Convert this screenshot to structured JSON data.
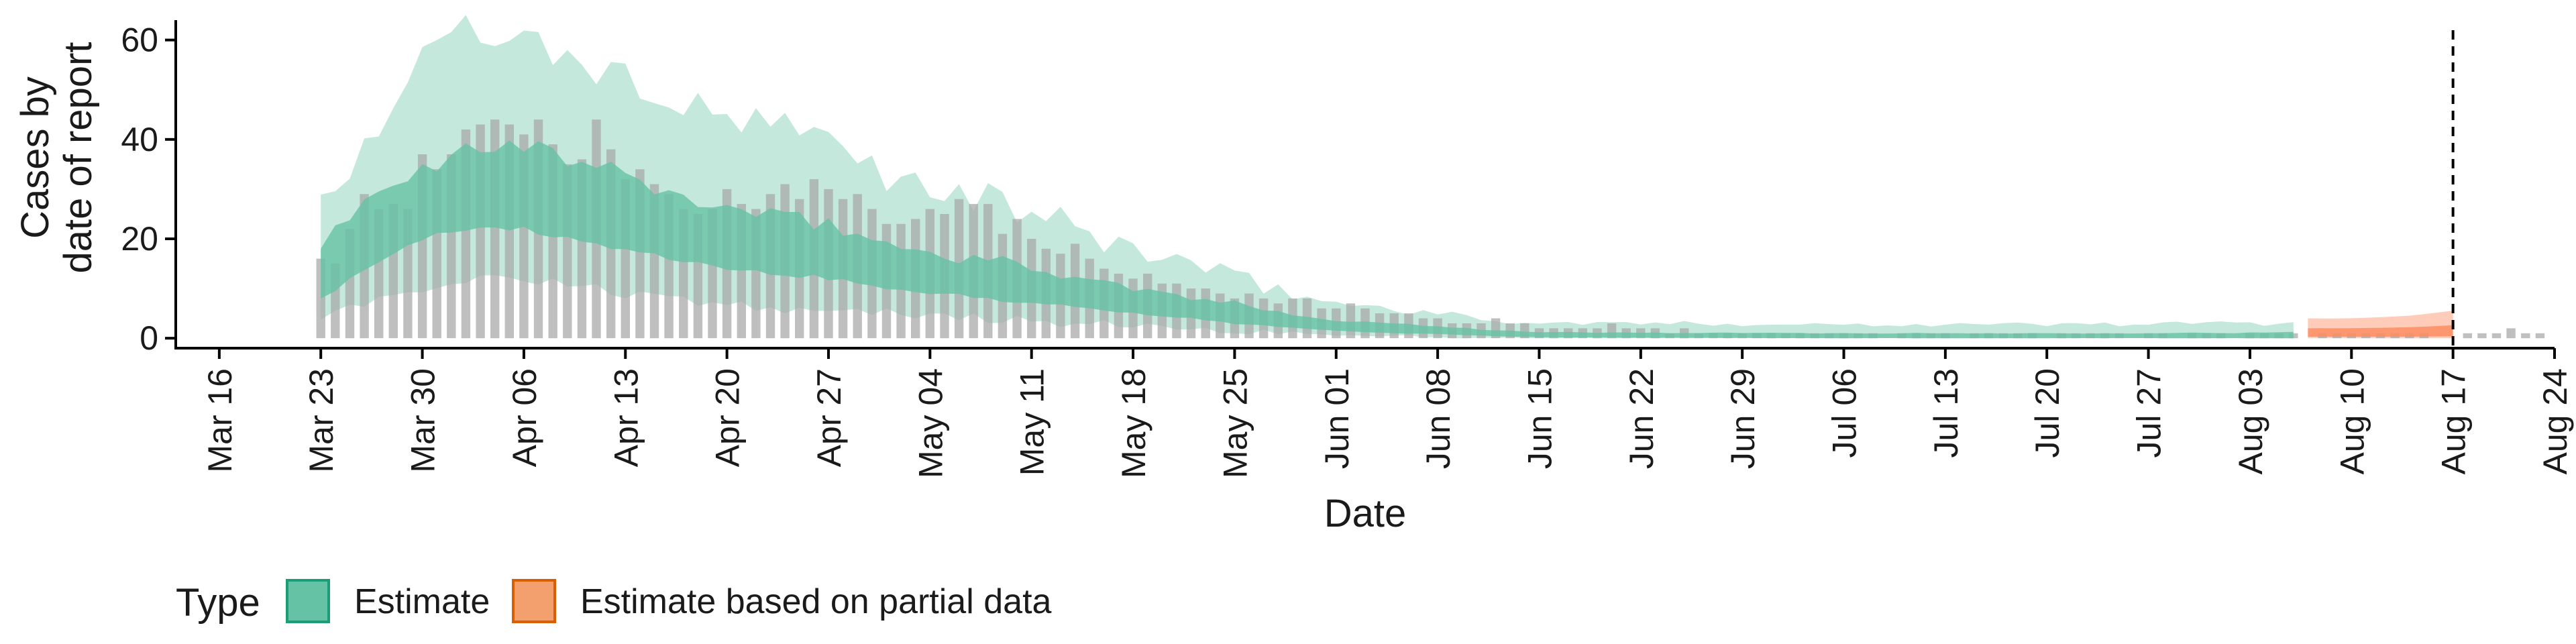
{
  "chart_data": {
    "type": "area",
    "xlabel": "Date",
    "ylabel": [
      "Cases by",
      "date of report"
    ],
    "ylim": [
      -2,
      64
    ],
    "yticks": [
      0,
      20,
      40,
      60
    ],
    "xlim": [
      "2020-03-13",
      "2020-08-24"
    ],
    "xticks": [
      "Mar 16",
      "Mar 23",
      "Mar 30",
      "Apr 06",
      "Apr 13",
      "Apr 20",
      "Apr 27",
      "May 04",
      "May 11",
      "May 18",
      "May 25",
      "Jun 01",
      "Jun 08",
      "Jun 15",
      "Jun 22",
      "Jun 29",
      "Jul 06",
      "Jul 13",
      "Jul 20",
      "Jul 27",
      "Aug 03",
      "Aug 10",
      "Aug 17",
      "Aug 24"
    ],
    "xtick_dates": [
      "2020-03-16",
      "2020-03-23",
      "2020-03-30",
      "2020-04-06",
      "2020-04-13",
      "2020-04-20",
      "2020-04-27",
      "2020-05-04",
      "2020-05-11",
      "2020-05-18",
      "2020-05-25",
      "2020-06-01",
      "2020-06-08",
      "2020-06-15",
      "2020-06-22",
      "2020-06-29",
      "2020-07-06",
      "2020-07-13",
      "2020-07-20",
      "2020-07-27",
      "2020-08-03",
      "2020-08-10",
      "2020-08-17",
      "2020-08-24"
    ],
    "vline_date": "2020-08-17",
    "colors": {
      "estimate": "#66c2a5",
      "partial": "#fc8d62",
      "bars": "#a6a6a6"
    },
    "legend": {
      "title": "Type",
      "position": "bottom-left",
      "items": [
        "Estimate",
        "Estimate based on partial data"
      ]
    },
    "bars": {
      "start": "2020-03-23",
      "values": [
        16,
        15,
        22,
        29,
        26,
        27,
        26,
        37,
        34,
        37,
        42,
        43,
        44,
        43,
        41,
        44,
        39,
        35,
        36,
        44,
        38,
        32,
        34,
        31,
        29,
        26,
        25,
        26,
        30,
        27,
        26,
        29,
        31,
        28,
        32,
        30,
        28,
        29,
        26,
        23,
        23,
        24,
        26,
        25,
        28,
        27,
        27,
        21,
        24,
        20,
        18,
        17,
        19,
        16,
        14,
        13,
        12,
        13,
        11,
        11,
        10,
        10,
        9,
        8,
        9,
        8,
        7,
        8,
        8,
        6,
        6,
        7,
        6,
        5,
        5,
        5,
        4,
        4,
        3,
        3,
        3,
        4,
        3,
        3,
        2,
        2,
        2,
        2,
        2,
        3,
        2,
        2,
        2,
        1,
        2,
        1,
        1,
        1,
        1,
        1,
        1,
        1,
        1,
        1,
        1,
        1,
        1,
        1,
        0,
        1,
        1,
        1,
        1,
        0,
        1,
        1,
        1,
        1,
        1,
        0,
        1,
        1,
        1,
        1,
        1,
        0,
        1,
        1,
        0,
        1,
        1,
        1,
        0,
        1,
        1,
        1,
        1,
        0,
        1,
        1,
        1,
        1,
        1,
        1,
        1,
        1,
        0,
        0,
        1,
        1,
        1,
        2,
        1,
        1
      ]
    },
    "series": [
      {
        "name": "Estimate",
        "start": "2020-03-23",
        "end": "2020-08-06",
        "knots": [
          [
            "2020-03-23",
            28,
            18,
            8,
            4
          ],
          [
            "2020-03-26",
            38,
            27,
            14,
            7
          ],
          [
            "2020-03-30",
            56,
            34,
            20,
            10
          ],
          [
            "2020-04-02",
            62,
            38,
            22,
            12
          ],
          [
            "2020-04-06",
            60,
            39,
            22,
            12
          ],
          [
            "2020-04-09",
            56,
            36,
            20,
            11
          ],
          [
            "2020-04-13",
            52,
            33,
            18,
            9
          ],
          [
            "2020-04-16",
            48,
            29,
            16,
            8
          ],
          [
            "2020-04-20",
            44,
            26,
            14,
            7
          ],
          [
            "2020-04-24",
            42,
            24,
            13,
            6
          ],
          [
            "2020-04-27",
            40,
            23,
            12,
            6
          ],
          [
            "2020-05-01",
            33,
            19,
            10,
            5
          ],
          [
            "2020-05-04",
            30,
            17,
            9,
            4.5
          ],
          [
            "2020-05-08",
            28,
            16,
            8,
            4
          ],
          [
            "2020-05-11",
            25,
            14,
            7,
            3.5
          ],
          [
            "2020-05-15",
            21,
            12,
            6,
            3
          ],
          [
            "2020-05-18",
            18,
            10,
            5,
            2.5
          ],
          [
            "2020-05-22",
            15,
            8,
            4,
            2
          ],
          [
            "2020-05-25",
            12,
            7,
            3,
            1.5
          ],
          [
            "2020-05-29",
            9,
            5,
            2,
            1
          ],
          [
            "2020-06-01",
            7,
            3.5,
            1.5,
            0.6
          ],
          [
            "2020-06-05",
            6,
            3,
            1,
            0.4
          ],
          [
            "2020-06-08",
            5,
            2.5,
            0.8,
            0.2
          ],
          [
            "2020-06-12",
            3.5,
            1.6,
            0.4,
            0
          ],
          [
            "2020-06-15",
            3,
            1.2,
            0.2,
            0
          ],
          [
            "2020-06-22",
            3,
            1.1,
            0.1,
            0
          ],
          [
            "2020-07-06",
            2.8,
            1,
            0,
            0
          ],
          [
            "2020-07-20",
            2.8,
            1,
            0,
            0
          ],
          [
            "2020-08-03",
            3,
            1.1,
            0,
            0
          ],
          [
            "2020-08-06",
            3,
            1.2,
            0,
            0
          ]
        ]
      },
      {
        "name": "Estimate based on partial data",
        "start": "2020-08-07",
        "end": "2020-08-17",
        "knots": [
          [
            "2020-08-07",
            4,
            2,
            0.3,
            0
          ],
          [
            "2020-08-10",
            4,
            2,
            0.3,
            0
          ],
          [
            "2020-08-14",
            4.5,
            2.2,
            0.3,
            0
          ],
          [
            "2020-08-17",
            5.5,
            2.6,
            0.4,
            0
          ]
        ]
      }
    ]
  }
}
